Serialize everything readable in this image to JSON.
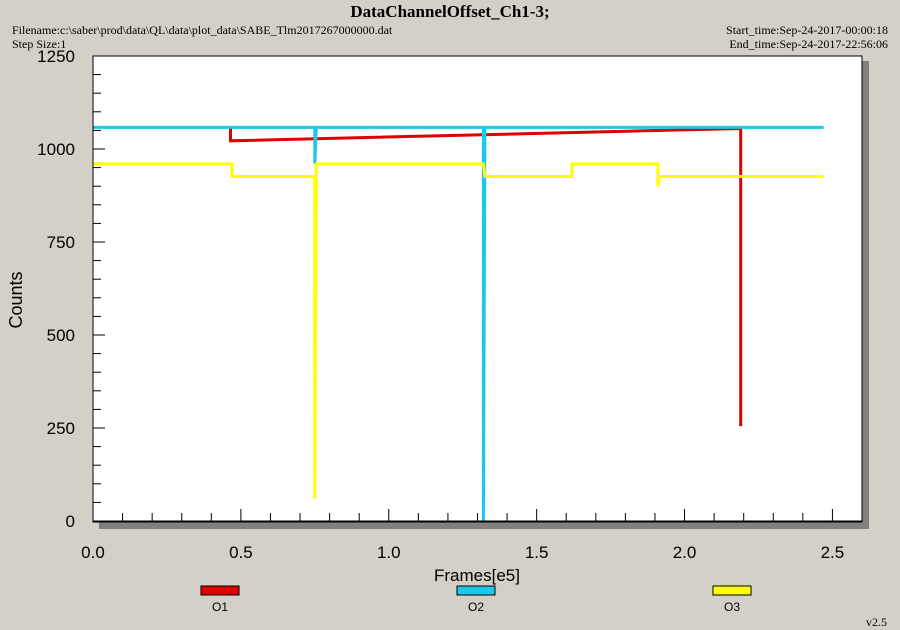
{
  "chart_data": {
    "type": "line",
    "title": "DataChannelOffset_Ch1-3;",
    "filename": "Filename:c:\\saber\\prod\\data\\QL\\data\\plot_data\\SABE_Tlm2017267000000.dat",
    "step_size": "Step Size:1",
    "start_time": "Start_time:Sep-24-2017-00:00:18",
    "end_time": "End_time:Sep-24-2017-22:56:06",
    "version": "v2.5",
    "xlabel": "Frames[e5]",
    "ylabel": "Counts",
    "xlim": [
      0,
      2.6
    ],
    "ylim": [
      0,
      1250
    ],
    "xticks": [
      0.0,
      0.5,
      1.0,
      1.5,
      2.0,
      2.5
    ],
    "xtick_labels": [
      "0.0",
      "0.5",
      "1.0",
      "1.5",
      "2.0",
      "2.5"
    ],
    "yticks": [
      0,
      250,
      500,
      750,
      1000,
      1250
    ],
    "ytick_labels": [
      "0",
      "250",
      "500",
      "750",
      "1000",
      "1250"
    ],
    "grid": false,
    "legend_position": "bottom",
    "series": [
      {
        "name": "O1",
        "color": "#e00000",
        "points": [
          [
            0.465,
            1055
          ],
          [
            0.465,
            1022
          ],
          [
            2.19,
            1055
          ],
          [
            2.19,
            255
          ]
        ]
      },
      {
        "name": "O2",
        "color": "#1cc8e8",
        "points": [
          [
            0.0,
            1058
          ],
          [
            0.75,
            1058
          ],
          [
            0.75,
            960
          ],
          [
            0.755,
            1058
          ],
          [
            1.32,
            1058
          ],
          [
            1.32,
            0
          ],
          [
            1.325,
            1058
          ],
          [
            2.47,
            1058
          ]
        ]
      },
      {
        "name": "O3",
        "color": "#ffff00",
        "points": [
          [
            0.0,
            960
          ],
          [
            0.47,
            960
          ],
          [
            0.47,
            926
          ],
          [
            0.75,
            926
          ],
          [
            0.75,
            60
          ],
          [
            0.755,
            960
          ],
          [
            1.32,
            960
          ],
          [
            1.325,
            926
          ],
          [
            1.62,
            926
          ],
          [
            1.62,
            960
          ],
          [
            1.91,
            960
          ],
          [
            1.91,
            900
          ],
          [
            1.915,
            926
          ],
          [
            2.47,
            926
          ]
        ]
      }
    ]
  }
}
